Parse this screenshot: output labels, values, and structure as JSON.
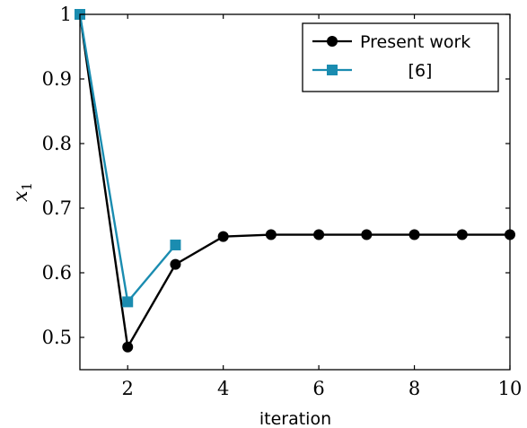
{
  "chart_data": {
    "type": "line",
    "title": "",
    "xlabel": "iteration",
    "ylabel_base": "x",
    "ylabel_sub": "1",
    "xlim": [
      1,
      10
    ],
    "ylim": [
      0.45,
      1.0
    ],
    "xticks": [
      2,
      4,
      6,
      8,
      10
    ],
    "yticks": [
      0.5,
      0.6,
      0.7,
      0.8,
      0.9,
      1
    ],
    "ytick_labels": [
      "0.5",
      "0.6",
      "0.7",
      "0.8",
      "0.9",
      "1"
    ],
    "grid": false,
    "legend_position": "top-right",
    "series": [
      {
        "name": "Present work",
        "color": "#000000",
        "marker": "circle",
        "x": [
          1,
          2,
          3,
          4,
          5,
          6,
          7,
          8,
          9,
          10
        ],
        "y": [
          1.0,
          0.485,
          0.613,
          0.656,
          0.659,
          0.659,
          0.659,
          0.659,
          0.659,
          0.659
        ]
      },
      {
        "name": "[6]",
        "color": "#1a8cb0",
        "marker": "square",
        "x": [
          1,
          2,
          3
        ],
        "y": [
          1.0,
          0.555,
          0.643
        ]
      }
    ]
  }
}
